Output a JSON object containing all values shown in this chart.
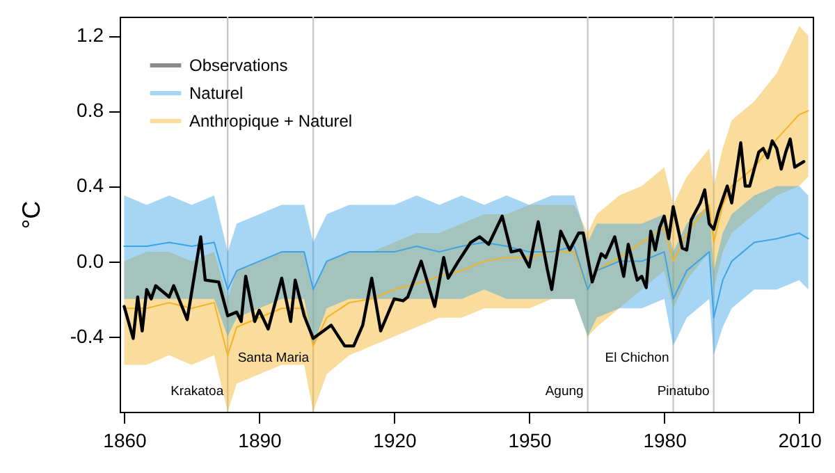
{
  "chart_data": {
    "type": "line",
    "ylabel": "°C",
    "xlim": [
      1859,
      2013
    ],
    "xticks": [
      1860,
      1890,
      1920,
      1950,
      1980,
      2010
    ],
    "ylim": [
      -0.8,
      1.3
    ],
    "yticks": [
      -0.4,
      {
        "value": 0,
        "label": "0.0"
      },
      0.4,
      0.8,
      1.2
    ],
    "legend": "top left",
    "grid": false,
    "line_style": "solid",
    "marker": "none",
    "ref_lines": [
      {
        "axis": "x",
        "value": 1883,
        "label": "Krakatoa",
        "color": "#c8c8c8"
      },
      {
        "axis": "x",
        "value": 1902,
        "label": "Santa Maria",
        "color": "#c8c8c8"
      },
      {
        "axis": "x",
        "value": 1963,
        "label": "Agung",
        "color": "#c8c8c8"
      },
      {
        "axis": "x",
        "value": 1982,
        "label": "El Chichon",
        "color": "#c8c8c8"
      },
      {
        "axis": "x",
        "value": 1991,
        "label": "Pinatubo",
        "color": "#c8c8c8"
      }
    ],
    "series": [
      {
        "name": "Observations",
        "color": "#000000",
        "x": [
          1860,
          1862,
          1863,
          1864,
          1865,
          1866,
          1867,
          1870,
          1871,
          1873,
          1874,
          1877,
          1878,
          1881,
          1883,
          1885,
          1886,
          1887,
          1889,
          1890,
          1892,
          1895,
          1897,
          1898,
          1900,
          1902,
          1906,
          1909,
          1911,
          1913,
          1915,
          1917,
          1920,
          1922,
          1923,
          1926,
          1929,
          1931,
          1932,
          1934,
          1937,
          1939,
          1941,
          1944,
          1946,
          1948,
          1950,
          1952,
          1954,
          1955,
          1957,
          1959,
          1961,
          1962,
          1964,
          1966,
          1967,
          1969,
          1971,
          1972,
          1974,
          1975,
          1976,
          1977,
          1978,
          1979,
          1980,
          1981,
          1982,
          1984,
          1985,
          1986,
          1988,
          1989,
          1990,
          1991,
          1992,
          1994,
          1995,
          1997,
          1998,
          1999,
          2001,
          2002,
          2003,
          2004,
          2005,
          2006,
          2007,
          2008,
          2009,
          2011
        ],
        "values": [
          -0.24,
          -0.41,
          -0.19,
          -0.37,
          -0.15,
          -0.2,
          -0.13,
          -0.19,
          -0.13,
          -0.25,
          -0.31,
          0.13,
          -0.1,
          -0.11,
          -0.29,
          -0.27,
          -0.32,
          -0.08,
          -0.32,
          -0.26,
          -0.36,
          -0.09,
          -0.32,
          -0.1,
          -0.29,
          -0.41,
          -0.34,
          -0.45,
          -0.45,
          -0.34,
          -0.09,
          -0.37,
          -0.2,
          -0.21,
          -0.19,
          0.0,
          -0.24,
          0.02,
          -0.09,
          -0.01,
          0.1,
          0.13,
          0.09,
          0.24,
          0.05,
          0.06,
          -0.03,
          0.21,
          -0.04,
          -0.15,
          0.16,
          0.06,
          0.15,
          0.15,
          -0.11,
          0.04,
          0.02,
          0.13,
          -0.08,
          0.09,
          -0.1,
          -0.08,
          -0.14,
          0.16,
          0.06,
          0.18,
          0.24,
          0.12,
          0.29,
          0.07,
          0.06,
          0.22,
          0.31,
          0.38,
          0.2,
          0.17,
          0.26,
          0.4,
          0.31,
          0.63,
          0.4,
          0.4,
          0.58,
          0.6,
          0.55,
          0.64,
          0.6,
          0.49,
          0.58,
          0.65,
          0.5,
          0.53
        ]
      },
      {
        "name": "Naturel",
        "color": "#3ba3e6",
        "x": [
          1860,
          1865,
          1870,
          1875,
          1880,
          1883,
          1885,
          1890,
          1895,
          1900,
          1902,
          1905,
          1910,
          1915,
          1920,
          1925,
          1930,
          1935,
          1940,
          1945,
          1950,
          1955,
          1960,
          1963,
          1965,
          1970,
          1975,
          1980,
          1982,
          1985,
          1990,
          1991,
          1993,
          1995,
          2000,
          2005,
          2010,
          2012
        ],
        "values": [
          0.08,
          0.08,
          0.1,
          0.08,
          0.1,
          -0.15,
          -0.05,
          0.0,
          0.05,
          0.05,
          -0.15,
          0.0,
          0.05,
          0.05,
          0.05,
          0.08,
          0.05,
          0.08,
          0.1,
          0.08,
          0.05,
          0.05,
          0.08,
          -0.15,
          -0.05,
          0.0,
          0.0,
          0.05,
          -0.2,
          -0.05,
          0.05,
          -0.3,
          -0.1,
          0.0,
          0.1,
          0.12,
          0.15,
          0.12
        ],
        "lower": [
          -0.2,
          -0.2,
          -0.2,
          -0.2,
          -0.2,
          -0.4,
          -0.3,
          -0.25,
          -0.2,
          -0.2,
          -0.45,
          -0.25,
          -0.2,
          -0.2,
          -0.2,
          -0.2,
          -0.2,
          -0.2,
          -0.15,
          -0.2,
          -0.2,
          -0.2,
          -0.2,
          -0.4,
          -0.3,
          -0.25,
          -0.25,
          -0.2,
          -0.45,
          -0.3,
          -0.2,
          -0.5,
          -0.35,
          -0.25,
          -0.15,
          -0.15,
          -0.1,
          -0.15
        ],
        "upper": [
          0.35,
          0.3,
          0.35,
          0.3,
          0.35,
          0.05,
          0.2,
          0.25,
          0.3,
          0.3,
          0.1,
          0.25,
          0.3,
          0.3,
          0.3,
          0.35,
          0.3,
          0.35,
          0.3,
          0.35,
          0.3,
          0.35,
          0.35,
          0.1,
          0.2,
          0.2,
          0.2,
          0.25,
          0.05,
          0.2,
          0.3,
          -0.05,
          0.15,
          0.25,
          0.35,
          0.4,
          0.4,
          0.35
        ]
      },
      {
        "name": "Anthropique + Naturel",
        "color": "#f5b324",
        "x": [
          1860,
          1865,
          1870,
          1875,
          1880,
          1883,
          1885,
          1890,
          1895,
          1900,
          1902,
          1905,
          1910,
          1915,
          1920,
          1925,
          1930,
          1935,
          1940,
          1945,
          1950,
          1955,
          1960,
          1963,
          1965,
          1970,
          1975,
          1980,
          1982,
          1985,
          1990,
          1991,
          1993,
          1995,
          2000,
          2005,
          2010,
          2012
        ],
        "values": [
          -0.25,
          -0.25,
          -0.22,
          -0.25,
          -0.22,
          -0.5,
          -0.35,
          -0.3,
          -0.25,
          -0.25,
          -0.45,
          -0.3,
          -0.22,
          -0.2,
          -0.15,
          -0.12,
          -0.08,
          -0.05,
          0.0,
          0.02,
          0.02,
          0.05,
          0.05,
          -0.15,
          -0.05,
          0.02,
          0.1,
          0.18,
          0.0,
          0.15,
          0.3,
          0.1,
          0.3,
          0.4,
          0.5,
          0.65,
          0.78,
          0.8
        ],
        "lower": [
          -0.55,
          -0.55,
          -0.5,
          -0.55,
          -0.5,
          -0.8,
          -0.65,
          -0.6,
          -0.55,
          -0.55,
          -0.8,
          -0.6,
          -0.5,
          -0.45,
          -0.4,
          -0.35,
          -0.3,
          -0.3,
          -0.25,
          -0.25,
          -0.25,
          -0.2,
          -0.2,
          -0.4,
          -0.35,
          -0.25,
          -0.15,
          -0.05,
          -0.25,
          -0.1,
          0.05,
          -0.15,
          0.05,
          0.15,
          0.25,
          0.35,
          0.4,
          0.45
        ],
        "upper": [
          0.0,
          0.05,
          0.05,
          0.0,
          0.05,
          -0.2,
          -0.05,
          0.0,
          0.05,
          0.05,
          -0.15,
          0.0,
          0.05,
          0.05,
          0.1,
          0.15,
          0.15,
          0.2,
          0.25,
          0.25,
          0.3,
          0.3,
          0.3,
          0.15,
          0.25,
          0.35,
          0.4,
          0.5,
          0.3,
          0.45,
          0.6,
          0.4,
          0.6,
          0.75,
          0.85,
          1.0,
          1.25,
          1.2
        ]
      }
    ]
  }
}
